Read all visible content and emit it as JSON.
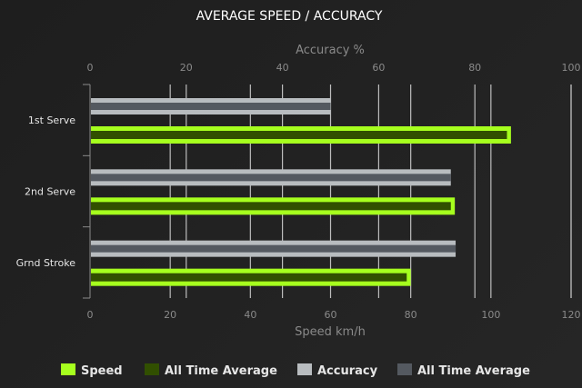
{
  "chart_data": {
    "type": "bar",
    "orientation": "horizontal",
    "title": "AVERAGE SPEED / ACCURACY",
    "categories": [
      "1st Serve",
      "2nd Serve",
      "Grnd Stroke"
    ],
    "top_axis": {
      "label": "Accuracy %",
      "range": [
        0,
        100
      ],
      "ticks": [
        0,
        20,
        40,
        60,
        80,
        100
      ]
    },
    "bottom_axis": {
      "label": "Speed km/h",
      "range": [
        0,
        120
      ],
      "ticks": [
        0,
        20,
        40,
        60,
        80,
        100,
        120
      ]
    },
    "series": [
      {
        "name": "Speed",
        "axis": "bottom",
        "color": "#a6ff1e",
        "values": [
          105,
          91,
          80
        ]
      },
      {
        "name": "All Time Average",
        "axis": "bottom",
        "color": "#314f00",
        "values": [
          104,
          90,
          79
        ]
      },
      {
        "name": "Accuracy",
        "axis": "top",
        "color": "#b8bcbf",
        "values": [
          50,
          75,
          76
        ]
      },
      {
        "name": "All Time Average",
        "axis": "top",
        "color": "#545960",
        "values": [
          50,
          75,
          76
        ]
      }
    ],
    "grid": true,
    "legend_position": "bottom"
  }
}
